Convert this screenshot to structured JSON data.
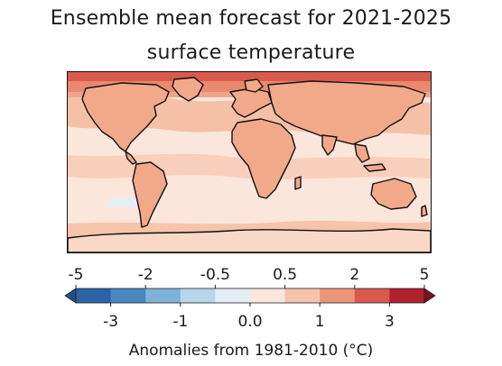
{
  "title_line1": "Ensemble mean forecast for 2021-2025",
  "title_line2": "surface temperature",
  "colorbar": {
    "top_ticks": [
      "-5",
      "-2",
      "-0.5",
      "0.5",
      "2",
      "5"
    ],
    "bottom_ticks": [
      "-3",
      "-1",
      "0.0",
      "1",
      "3"
    ],
    "bins": [
      {
        "from": -5,
        "to": -3,
        "color": "#2c63a6"
      },
      {
        "from": -3,
        "to": -2,
        "color": "#4a86c0"
      },
      {
        "from": -2,
        "to": -1,
        "color": "#7fb2d8"
      },
      {
        "from": -1,
        "to": -0.5,
        "color": "#b7d6ea"
      },
      {
        "from": -0.5,
        "to": 0.0,
        "color": "#e4eef5"
      },
      {
        "from": 0.0,
        "to": 0.5,
        "color": "#fbe6dc"
      },
      {
        "from": 0.5,
        "to": 1,
        "color": "#f6c4ab"
      },
      {
        "from": 1,
        "to": 2,
        "color": "#ec9577"
      },
      {
        "from": 2,
        "to": 3,
        "color": "#d95a4c"
      },
      {
        "from": 3,
        "to": 5,
        "color": "#b0202d"
      }
    ],
    "under_color": "#1f4e8c",
    "over_color": "#7a0f1f",
    "label": "Anomalies from 1981-2010 (°C)"
  },
  "map": {
    "projection": "plate-carree",
    "extent": "global",
    "ocean_base_color": "#fbe6dc",
    "land_warm_color": "#f4b89c",
    "arctic_hot_color": "#d95a4c",
    "coastline_color": "#111111"
  }
}
